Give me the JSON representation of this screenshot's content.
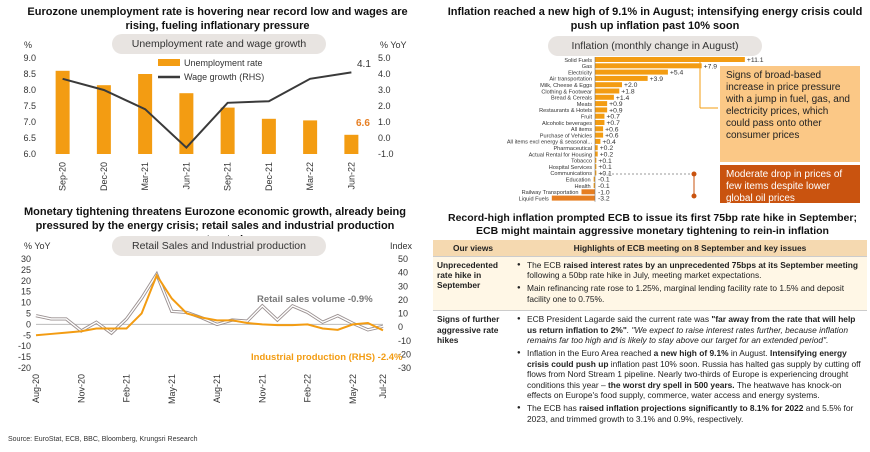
{
  "colors": {
    "orange": "#f39c12",
    "orange_dark": "#e67e22",
    "grey_line": "#b0a8a8",
    "box_light": "#fbc886",
    "box_dark": "#c9530f",
    "pill_bg": "#e8e4e1"
  },
  "panel1": {
    "title": "Eurozone unemployment rate is hovering near record low and wages are rising, fueling inflationary pressure",
    "pill": "Unemployment rate and wage growth",
    "left_unit": "%",
    "right_unit": "% YoY",
    "legend": [
      "Unemployment rate",
      "Wage growth (RHS)"
    ],
    "label_last_wage": "4.1",
    "label_last_unemp": "6.6",
    "chart_data": {
      "type": "bar",
      "categories": [
        "Sep-20",
        "Dec-20",
        "Mar-21",
        "Jun-21",
        "Sep-21",
        "Dec-21",
        "Mar-22",
        "Jun-22"
      ],
      "series": [
        {
          "name": "Unemployment rate",
          "values": [
            8.6,
            8.15,
            8.5,
            7.9,
            7.45,
            7.1,
            7.05,
            6.6
          ]
        },
        {
          "name": "Wage growth (RHS)",
          "values": [
            3.7,
            3.0,
            1.8,
            -0.6,
            2.2,
            2.3,
            3.7,
            4.1
          ]
        }
      ],
      "ylim": [
        6.0,
        9.0
      ],
      "y2lim": [
        -1.0,
        5.0
      ],
      "yticks": [
        "6.0",
        "6.5",
        "7.0",
        "7.5",
        "8.0",
        "8.5",
        "9.0"
      ],
      "y2ticks": [
        "-1.0",
        "0.0",
        "1.0",
        "2.0",
        "3.0",
        "4.0",
        "5.0"
      ]
    }
  },
  "panel2": {
    "title": "Monetary tightening threatens Eurozone economic growth, already being pressured by the energy crisis; retail sales and industrial production contracted",
    "pill": "Retail Sales and Industrial production",
    "left_unit": "% YoY",
    "right_unit": "Index",
    "label_retail": "Retail sales volume -0.9%",
    "label_ip": "Industrial production (RHS) -2.4%",
    "chart_data": {
      "type": "line",
      "x": [
        "Aug-20",
        "Sep-20",
        "Oct-20",
        "Nov-20",
        "Dec-20",
        "Jan-21",
        "Feb-21",
        "Mar-21",
        "Apr-21",
        "May-21",
        "Jun-21",
        "Jul-21",
        "Aug-21",
        "Sep-21",
        "Oct-21",
        "Nov-21",
        "Dec-21",
        "Jan-22",
        "Feb-22",
        "Mar-22",
        "Apr-22",
        "May-22",
        "Jun-22",
        "Jul-22"
      ],
      "xticks": [
        "Aug-20",
        "Nov-20",
        "Feb-21",
        "May-21",
        "Aug-21",
        "Nov-21",
        "Feb-22",
        "May-22",
        "Jul-22"
      ],
      "series": [
        {
          "name": "Retail sales volume",
          "values": [
            4,
            2.5,
            2.5,
            -3,
            1,
            -4,
            2.5,
            12,
            23,
            6,
            5.5,
            3,
            0,
            2,
            1.5,
            8.5,
            2,
            8.5,
            5.5,
            1,
            4,
            0.5,
            -2.5,
            -0.9
          ]
        },
        {
          "name": "Industrial production (RHS)",
          "values": [
            -6,
            -5,
            -4,
            -3,
            -1,
            -1,
            -1,
            10,
            38,
            21,
            10,
            7,
            5,
            5,
            3,
            2,
            1.5,
            1.5,
            2,
            -1,
            -2,
            2,
            3,
            -2.4
          ]
        }
      ],
      "ylim": [
        -20,
        30
      ],
      "y2lim": [
        -30,
        50
      ],
      "yticks": [
        "-20",
        "-15",
        "-10",
        "-5",
        "0",
        "5",
        "10",
        "15",
        "20",
        "25",
        "30"
      ],
      "y2ticks": [
        "-30",
        "-20",
        "-10",
        "0",
        "10",
        "20",
        "30",
        "40",
        "50"
      ]
    }
  },
  "source": "Source: EuroStat, ECB, BBC, Bloomberg, Krungsri Research",
  "panel3": {
    "title": "Inflation reached a new high of 9.1% in August; intensifying energy crisis could push up inflation past 10% soon",
    "pill": "Inflation (monthly change in August)",
    "chart_data": {
      "type": "bar",
      "categories": [
        "Solid Fuels",
        "Gas",
        "Electricity",
        "Air transportation",
        "Milk, Cheese & Eggs",
        "Clothing & Footwear",
        "Bread & Cereals",
        "Meats",
        "Restaurants & Hotels",
        "Fruit",
        "Alcoholic beverages",
        "All items",
        "Purchase of Vehicles",
        "All items excl energy & seasonal...",
        "Pharmaceutical",
        "Actual Rental for Housing",
        "Tobacco",
        "Hospital Services",
        "Communications",
        "Education",
        "Health",
        "Railway Transportation",
        "Liquid Fuels"
      ],
      "values": [
        11.1,
        7.9,
        5.4,
        3.9,
        2.0,
        1.8,
        1.4,
        0.9,
        0.9,
        0.7,
        0.7,
        0.6,
        0.6,
        0.4,
        0.2,
        0.2,
        0.1,
        0.1,
        0.1,
        -0.1,
        -0.1,
        -1.0,
        -3.2
      ],
      "labels": [
        "+11.1",
        "+7.9",
        "+5.4",
        "+3.9",
        "+2.0",
        "+1.8",
        "+1.4",
        "+0.9",
        "+0.9",
        "+0.7",
        "+0.7",
        "+0.6",
        "+0.6",
        "+0.4",
        "+0.2",
        "+0.2",
        "+0.1",
        "+0.1",
        "+0.1",
        "-0.1",
        "-0.1",
        "-1.0",
        "-3.2"
      ]
    },
    "note1": "Signs of broad-based increase in price pressure with a jump in fuel, gas, and electricity prices, which could pass onto other consumer prices",
    "note2": "Moderate drop in prices of few items despite lower global oil prices"
  },
  "panel4": {
    "title": "Record-high inflation prompted ECB to issue its first 75bp rate hike in September; ECB might maintain aggressive monetary tightening to rein-in inflation",
    "col1": "Our views",
    "col2": "Highlights of ECB meeting on 8 September and key issues",
    "row1_view": "Unprecedented rate hike in September",
    "row1_b1_pre": "The ECB ",
    "row1_b1_bold": "raised interest rates by an unprecedented 75bps at its September meeting",
    "row1_b1_post": " following a 50bp rate hike in July, meeting market expectations.",
    "row1_b2": "Main refinancing rate rose to 1.25%, marginal lending facility rate to 1.5% and deposit facility one to 0.75%.",
    "row2_view": "Signs of further aggressive rate hikes",
    "row2_b1_pre": "ECB President Lagarde said the current rate was ",
    "row2_b1_quote": "\"far away from the rate that will help us return inflation to 2%\"",
    "row2_b1_post": ". \"We expect to raise interest rates further, because inflation remains far too high and is likely to stay above our target for an extended period\".",
    "row2_b2_pre": "Inflation in the Euro Area reached ",
    "row2_b2_bold1": "a new high of 9.1%",
    "row2_b2_mid": " in August. ",
    "row2_b2_bold2": "Intensifying energy crisis could push up",
    "row2_b2_mid2": " inflation past 10% soon. Russia has halted gas supply by cutting off flows from Nord Stream 1 pipeline. Nearly two-thirds of Europe is experiencing drought conditions this year – ",
    "row2_b2_bold3": "the worst dry spell in 500 years.",
    "row2_b2_post": " The heatwave has knock-on effects on Europe's food supply, commerce, water access and energy systems.",
    "row2_b3_pre": "The ECB has ",
    "row2_b3_bold": "raised inflation projections significantly to 8.1% for 2022",
    "row2_b3_post": " and 5.5% for 2023, and trimmed growth to 3.1% and 0.9%, respectively."
  }
}
